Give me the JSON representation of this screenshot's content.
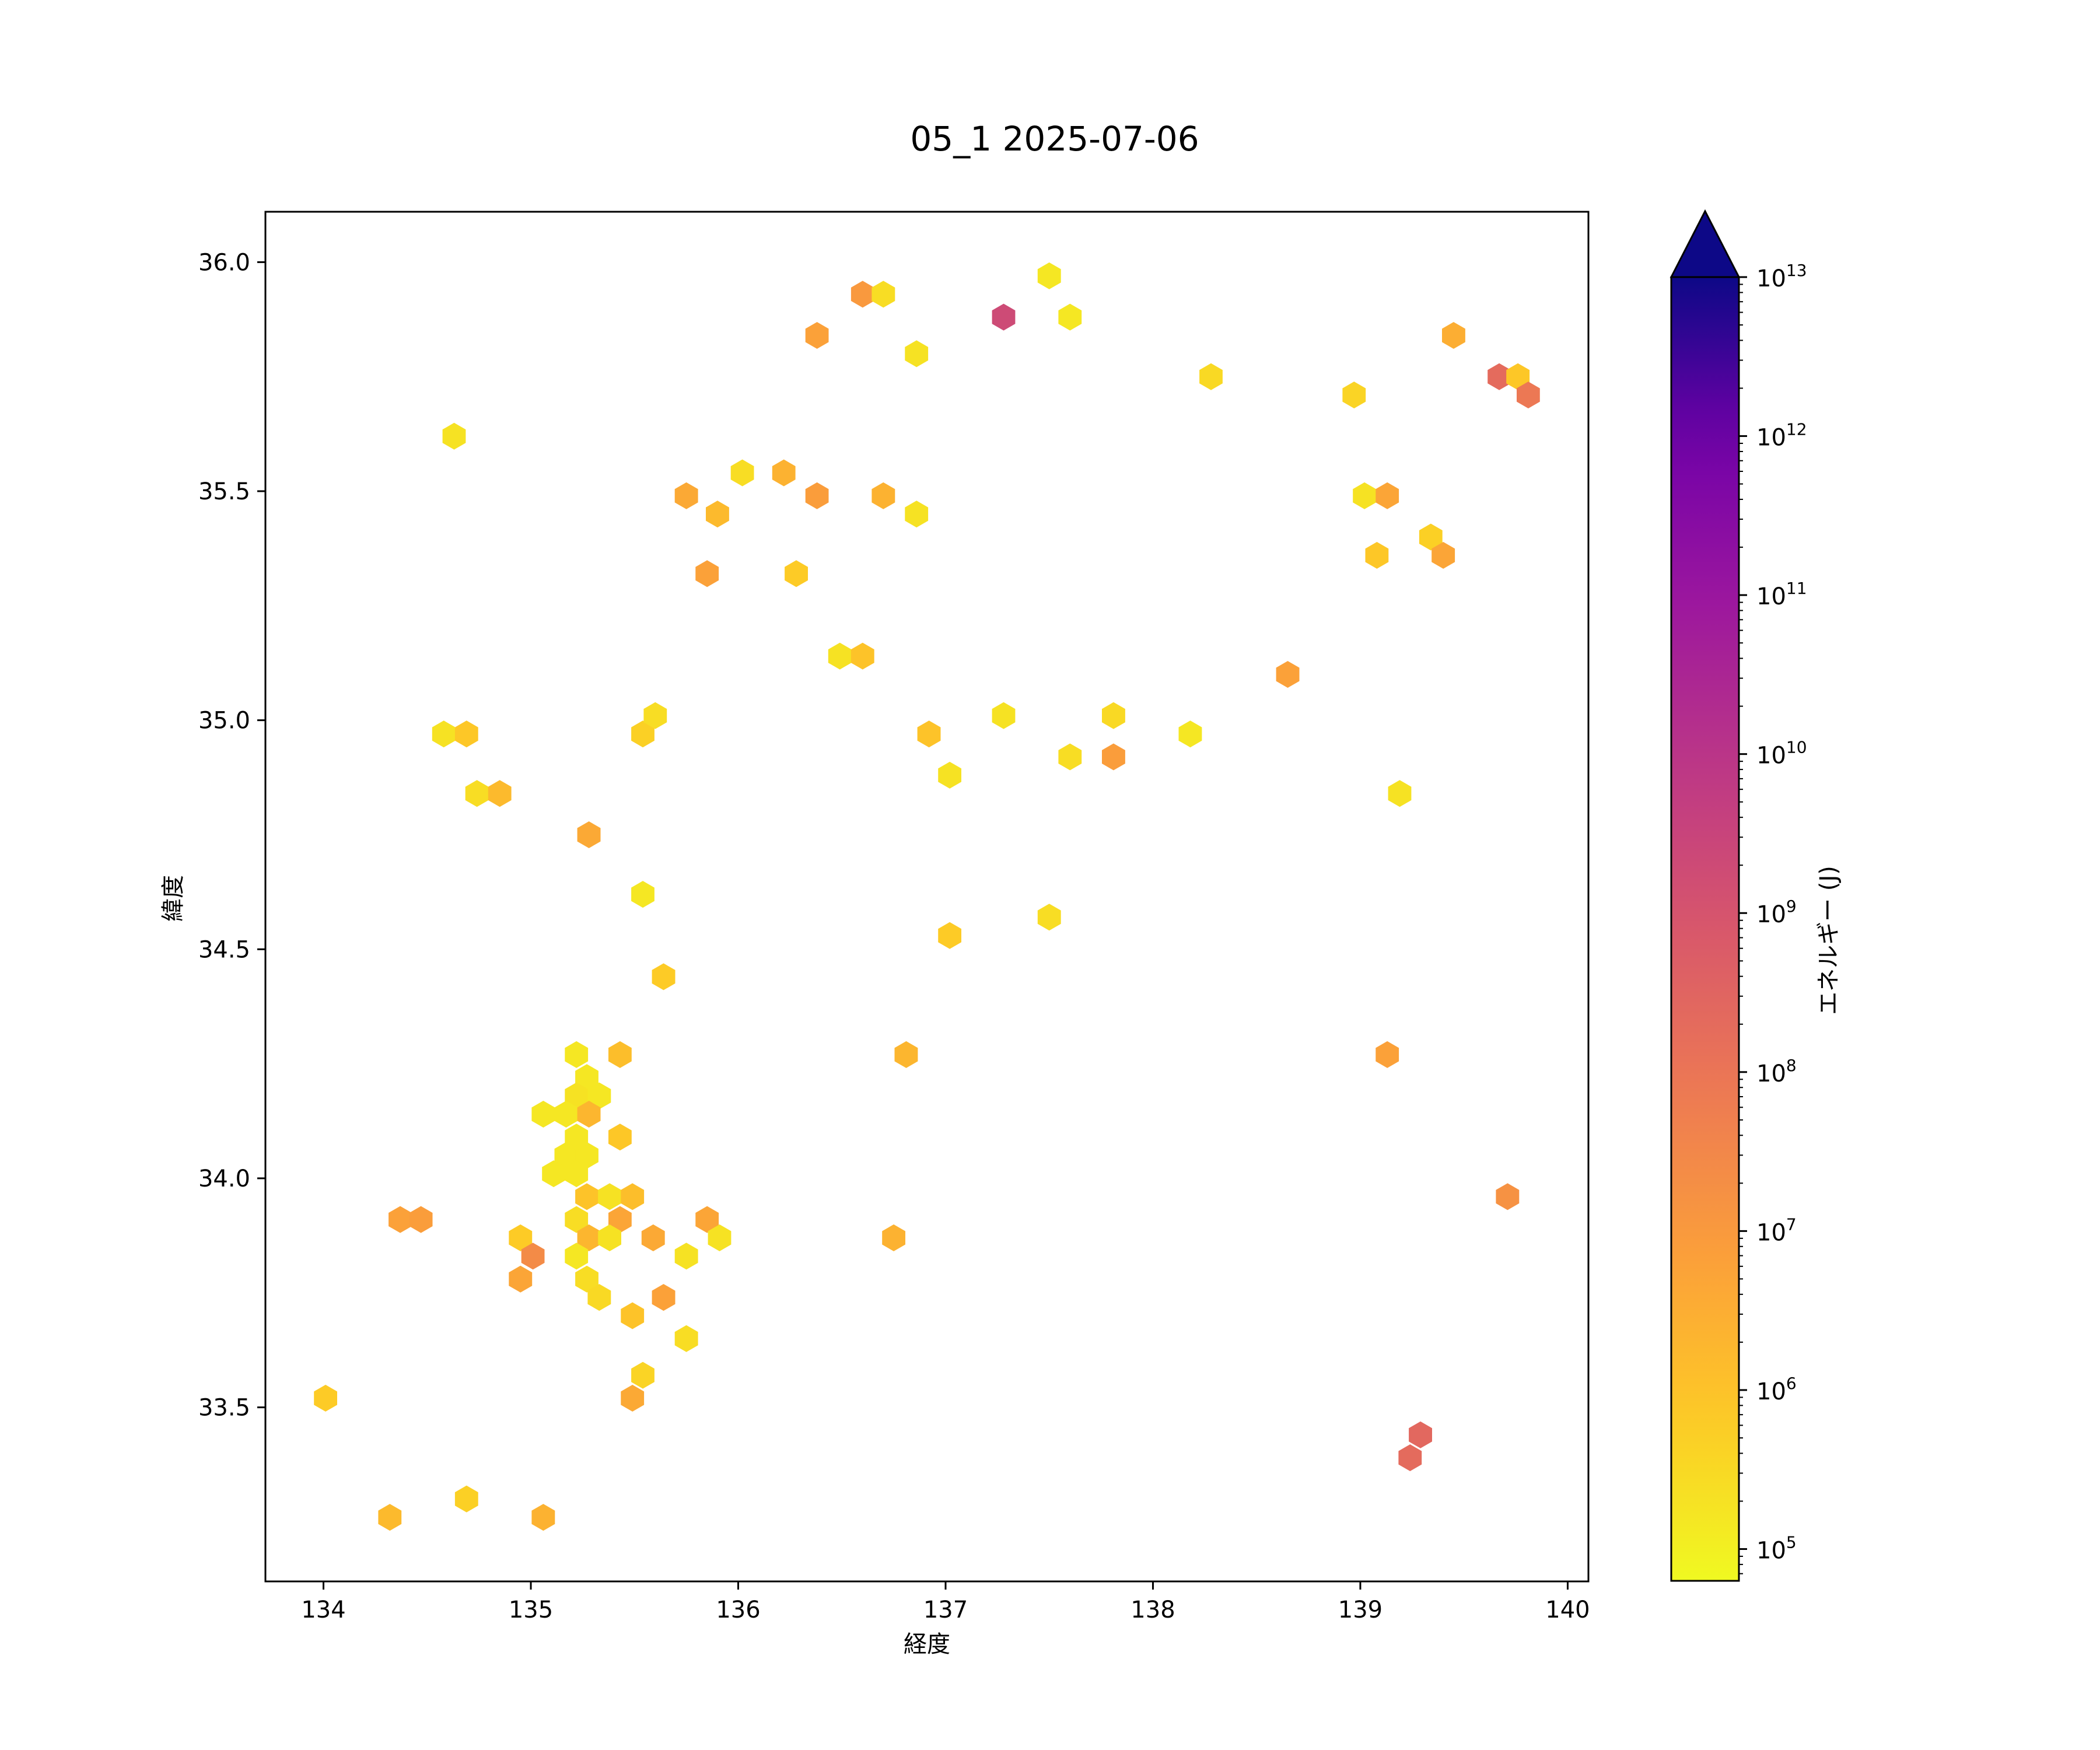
{
  "chart_data": {
    "type": "hexbin",
    "title": "05_1 2025-07-06",
    "xlabel": "経度",
    "ylabel": "緯度",
    "xlim": [
      133.72,
      140.1
    ],
    "ylim": [
      33.12,
      36.11
    ],
    "xticks": [
      "134",
      "135",
      "136",
      "137",
      "138",
      "139",
      "140"
    ],
    "yticks": [
      "33.5",
      "34.0",
      "34.5",
      "35.0",
      "35.5",
      "36.0"
    ],
    "grid": false,
    "colorbar": {
      "label": "エネルギー (J)",
      "scale": "log",
      "min_exp": 4.8,
      "max_exp": 13,
      "extend": "max",
      "extend_color": "#0d0887",
      "cmap": "plasma_r",
      "tick_bases": [
        "10",
        "10",
        "10",
        "10",
        "10",
        "10",
        "10",
        "10",
        "10"
      ],
      "tick_exponents": [
        "5",
        "6",
        "7",
        "8",
        "9",
        "10",
        "11",
        "12",
        "13"
      ]
    },
    "points": [
      [
        137.5,
        35.97,
        5.2
      ],
      [
        137.28,
        35.88,
        9.3
      ],
      [
        137.6,
        35.88,
        5.2
      ],
      [
        136.6,
        35.93,
        7.0
      ],
      [
        136.7,
        35.93,
        5.4
      ],
      [
        136.38,
        35.84,
        6.8
      ],
      [
        136.86,
        35.8,
        5.3
      ],
      [
        134.63,
        35.62,
        5.3
      ],
      [
        138.28,
        35.75,
        5.5
      ],
      [
        138.97,
        35.71,
        5.6
      ],
      [
        139.45,
        35.84,
        6.5
      ],
      [
        139.67,
        35.75,
        8.3
      ],
      [
        139.76,
        35.75,
        5.9
      ],
      [
        139.81,
        35.71,
        7.9
      ],
      [
        136.02,
        35.54,
        5.4
      ],
      [
        136.22,
        35.54,
        6.4
      ],
      [
        135.75,
        35.49,
        6.6
      ],
      [
        136.38,
        35.49,
        6.9
      ],
      [
        136.7,
        35.49,
        6.4
      ],
      [
        135.9,
        35.45,
        6.2
      ],
      [
        136.86,
        35.45,
        5.3
      ],
      [
        139.02,
        35.49,
        5.3
      ],
      [
        139.13,
        35.49,
        6.7
      ],
      [
        139.34,
        35.4,
        5.7
      ],
      [
        139.08,
        35.36,
        5.9
      ],
      [
        139.4,
        35.36,
        6.7
      ],
      [
        135.85,
        35.32,
        6.8
      ],
      [
        136.28,
        35.32,
        5.8
      ],
      [
        136.49,
        35.14,
        5.3
      ],
      [
        136.6,
        35.14,
        6.0
      ],
      [
        138.65,
        35.1,
        6.8
      ],
      [
        134.58,
        34.97,
        5.3
      ],
      [
        134.69,
        34.97,
        5.9
      ],
      [
        135.54,
        34.97,
        5.7
      ],
      [
        135.6,
        35.01,
        5.4
      ],
      [
        136.92,
        34.97,
        6.0
      ],
      [
        137.28,
        35.01,
        5.3
      ],
      [
        137.6,
        34.92,
        5.4
      ],
      [
        137.81,
        35.01,
        5.5
      ],
      [
        137.81,
        34.92,
        6.9
      ],
      [
        138.18,
        34.97,
        5.2
      ],
      [
        134.74,
        34.84,
        5.4
      ],
      [
        134.85,
        34.84,
        6.2
      ],
      [
        137.02,
        34.88,
        5.3
      ],
      [
        139.19,
        34.84,
        5.3
      ],
      [
        135.28,
        34.75,
        6.6
      ],
      [
        135.54,
        34.62,
        5.2
      ],
      [
        137.02,
        34.53,
        5.8
      ],
      [
        137.5,
        34.57,
        5.4
      ],
      [
        135.64,
        34.44,
        5.8
      ],
      [
        135.22,
        34.27,
        5.2
      ],
      [
        135.43,
        34.27,
        6.1
      ],
      [
        136.81,
        34.27,
        6.3
      ],
      [
        139.13,
        34.27,
        6.8
      ],
      [
        135.27,
        34.22,
        5.2
      ],
      [
        135.22,
        34.18,
        5.3
      ],
      [
        135.33,
        34.18,
        5.2
      ],
      [
        135.06,
        34.14,
        5.2
      ],
      [
        135.17,
        34.14,
        5.2
      ],
      [
        135.28,
        34.14,
        6.3
      ],
      [
        135.43,
        34.09,
        5.9
      ],
      [
        135.17,
        34.05,
        5.2
      ],
      [
        135.27,
        34.05,
        5.2
      ],
      [
        135.22,
        34.09,
        5.2
      ],
      [
        135.11,
        34.01,
        5.2
      ],
      [
        135.22,
        34.01,
        5.2
      ],
      [
        134.37,
        33.91,
        6.8
      ],
      [
        134.47,
        33.91,
        6.9
      ],
      [
        135.27,
        33.96,
        6.0
      ],
      [
        135.38,
        33.96,
        5.3
      ],
      [
        135.49,
        33.96,
        6.1
      ],
      [
        135.22,
        33.91,
        5.4
      ],
      [
        135.43,
        33.91,
        6.7
      ],
      [
        135.85,
        33.91,
        6.7
      ],
      [
        139.71,
        33.96,
        7.2
      ],
      [
        134.95,
        33.87,
        5.8
      ],
      [
        135.28,
        33.87,
        6.3
      ],
      [
        135.38,
        33.87,
        5.3
      ],
      [
        135.59,
        33.87,
        6.6
      ],
      [
        135.91,
        33.87,
        5.3
      ],
      [
        136.75,
        33.87,
        6.4
      ],
      [
        135.01,
        33.83,
        7.4
      ],
      [
        135.22,
        33.83,
        5.2
      ],
      [
        135.75,
        33.83,
        5.3
      ],
      [
        134.95,
        33.78,
        6.7
      ],
      [
        135.27,
        33.78,
        5.4
      ],
      [
        135.33,
        33.74,
        5.5
      ],
      [
        135.64,
        33.74,
        6.8
      ],
      [
        135.49,
        33.7,
        6.0
      ],
      [
        135.75,
        33.65,
        5.4
      ],
      [
        135.54,
        33.57,
        5.6
      ],
      [
        135.49,
        33.52,
        6.6
      ],
      [
        134.01,
        33.52,
        5.8
      ],
      [
        139.29,
        33.44,
        8.4
      ],
      [
        139.24,
        33.39,
        8.3
      ],
      [
        134.69,
        33.3,
        5.7
      ],
      [
        134.32,
        33.26,
        6.2
      ],
      [
        135.06,
        33.26,
        6.4
      ]
    ]
  }
}
